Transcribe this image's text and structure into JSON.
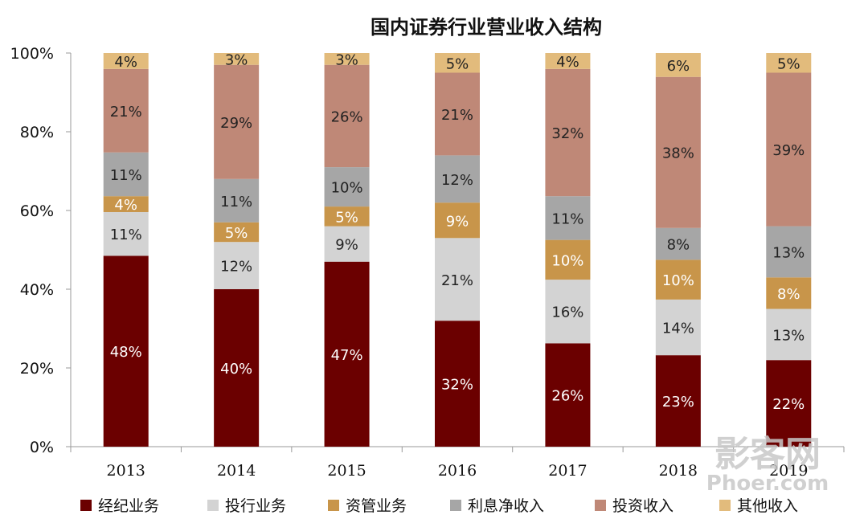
{
  "chart_data": {
    "type": "bar",
    "stacked": true,
    "title": "国内证券行业营业收入结构",
    "categories": [
      "2013",
      "2014",
      "2015",
      "2016",
      "2017",
      "2018",
      "2019"
    ],
    "ylim": [
      0,
      100
    ],
    "yticks": [
      "0%",
      "20%",
      "40%",
      "60%",
      "80%",
      "100%"
    ],
    "grid": false,
    "legend_position": "bottom",
    "series": [
      {
        "name": "经纪业务",
        "color": "#6b0000",
        "label_color": "#ffffff",
        "values": [
          48,
          40,
          47,
          32,
          26,
          23,
          22
        ]
      },
      {
        "name": "投行业务",
        "color": "#d3d3d3",
        "label_color": "#222222",
        "values": [
          11,
          12,
          9,
          21,
          16,
          14,
          13
        ]
      },
      {
        "name": "资管业务",
        "color": "#c8954a",
        "label_color": "#ffffff",
        "values": [
          4,
          5,
          5,
          9,
          10,
          10,
          8
        ]
      },
      {
        "name": "利息净收入",
        "color": "#a6a6a6",
        "label_color": "#222222",
        "values": [
          11,
          11,
          10,
          12,
          11,
          8,
          13
        ]
      },
      {
        "name": "投资收入",
        "color": "#bf8877",
        "label_color": "#222222",
        "values": [
          21,
          29,
          26,
          21,
          32,
          38,
          39
        ]
      },
      {
        "name": "其他收入",
        "color": "#e2bb7c",
        "label_color": "#222222",
        "values": [
          4,
          3,
          3,
          5,
          4,
          6,
          5
        ]
      }
    ]
  },
  "watermark": {
    "line1": "影客网",
    "line2": "Phoer.com"
  }
}
